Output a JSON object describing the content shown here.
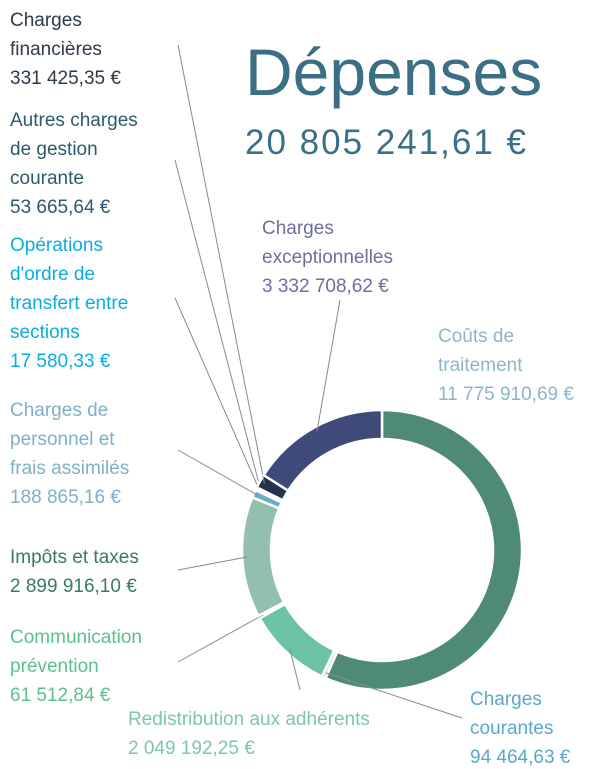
{
  "chart_data": {
    "type": "donut",
    "title": "Dépenses",
    "subtitle": "20 805 241,61 €",
    "categories": [
      "Coûts de\ntraitement",
      "Charges\ncourantes",
      "Redistribution aux adhérents",
      "Communication\nprévention",
      "Impôts et taxes",
      "Charges de\npersonnel et\nfrais assimilés",
      "Opérations\nd'ordre de\ntransfert entre\nsections",
      "Autres charges\nde gestion\ncourante",
      "Charges\nfinancières",
      "Charges\nexceptionnelles"
    ],
    "values": [
      11775910.69,
      94464.63,
      2049192.25,
      61512.84,
      2899916.1,
      188865.16,
      17580.33,
      53665.64,
      331425.35,
      3332708.62
    ],
    "value_labels": [
      "11 775 910,69 €",
      "94 464,63 €",
      "2 049 192,25 €",
      "61 512,84 €",
      "2 899 916,10 €",
      "188 865,16 €",
      "17 580,33 €",
      "53 665,64 €",
      "331 425,35 €",
      "3 332 708,62 €"
    ],
    "colors": [
      "#4f8a78",
      "#cfe6ef",
      "#6cc2a6",
      "#5fbf8e",
      "#93bfb0",
      "#6aadc9",
      "#00b0e0",
      "#2f5a6a",
      "#24344f",
      "#3e4a7a"
    ],
    "label_colors": [
      "#8cb6c8",
      "#5da6cc",
      "#7fc5ab",
      "#5cc08d",
      "#3a7a60",
      "#7fb0c8",
      "#0aade0",
      "#2d5a6a",
      "#2d3a4a",
      "#6e6fa0"
    ]
  }
}
